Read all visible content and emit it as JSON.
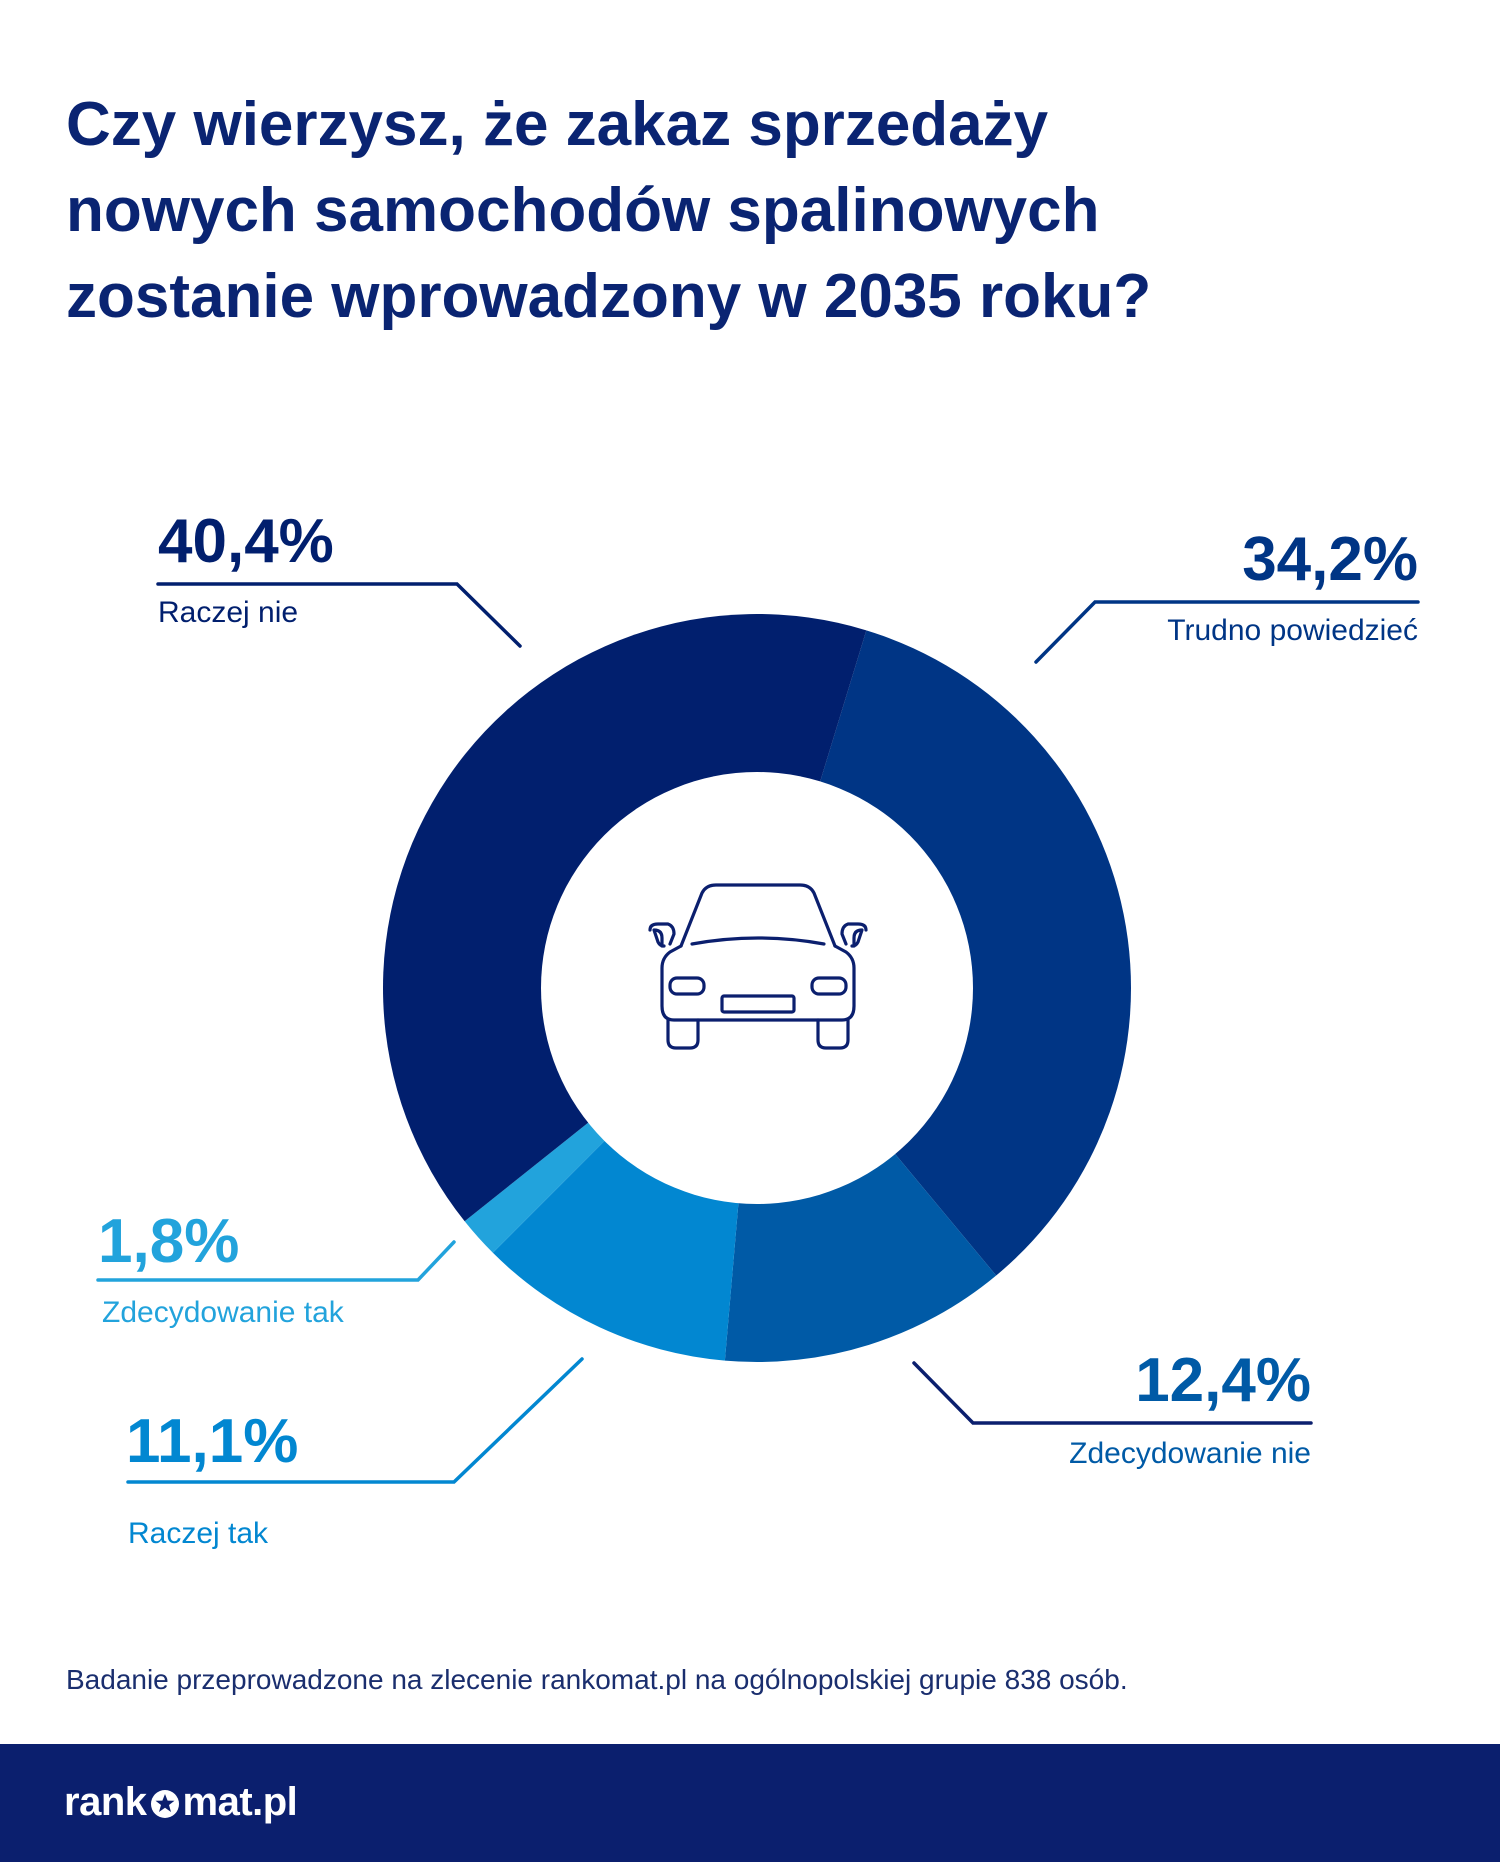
{
  "title_lines": [
    "Czy wierzysz, że zakaz sprzedaży",
    "nowych samochodów spalinowych",
    "zostanie wprowadzony w 2035 roku?"
  ],
  "chart_data": {
    "type": "pie",
    "subtype": "donut",
    "title": "Czy wierzysz, że zakaz sprzedaży nowych samochodów spalinowych zostanie wprowadzony w 2035 roku?",
    "slices": [
      {
        "label": "Trudno powiedzieć",
        "value": 34.2,
        "display": "34,2%",
        "color": "#003585"
      },
      {
        "label": "Zdecydowanie nie",
        "value": 12.4,
        "display": "12,4%",
        "color": "#005aa6"
      },
      {
        "label": "Raczej tak",
        "value": 11.1,
        "display": "11,1%",
        "color": "#0287d1"
      },
      {
        "label": "Zdecydowanie tak",
        "value": 1.8,
        "display": "1,8%",
        "color": "#22a3dc"
      },
      {
        "label": "Raczej nie",
        "value": 40.4,
        "display": "40,4%",
        "color": "#011f6e"
      }
    ],
    "center_icon": "car-icon"
  },
  "footnote": "Badanie przeprowadzone na zlecenie rankomat.pl na ogólnopolskiej grupie 838 osób.",
  "logo": {
    "part1": "rank",
    "part2": "mat.pl",
    "star_icon": "star-icon"
  }
}
